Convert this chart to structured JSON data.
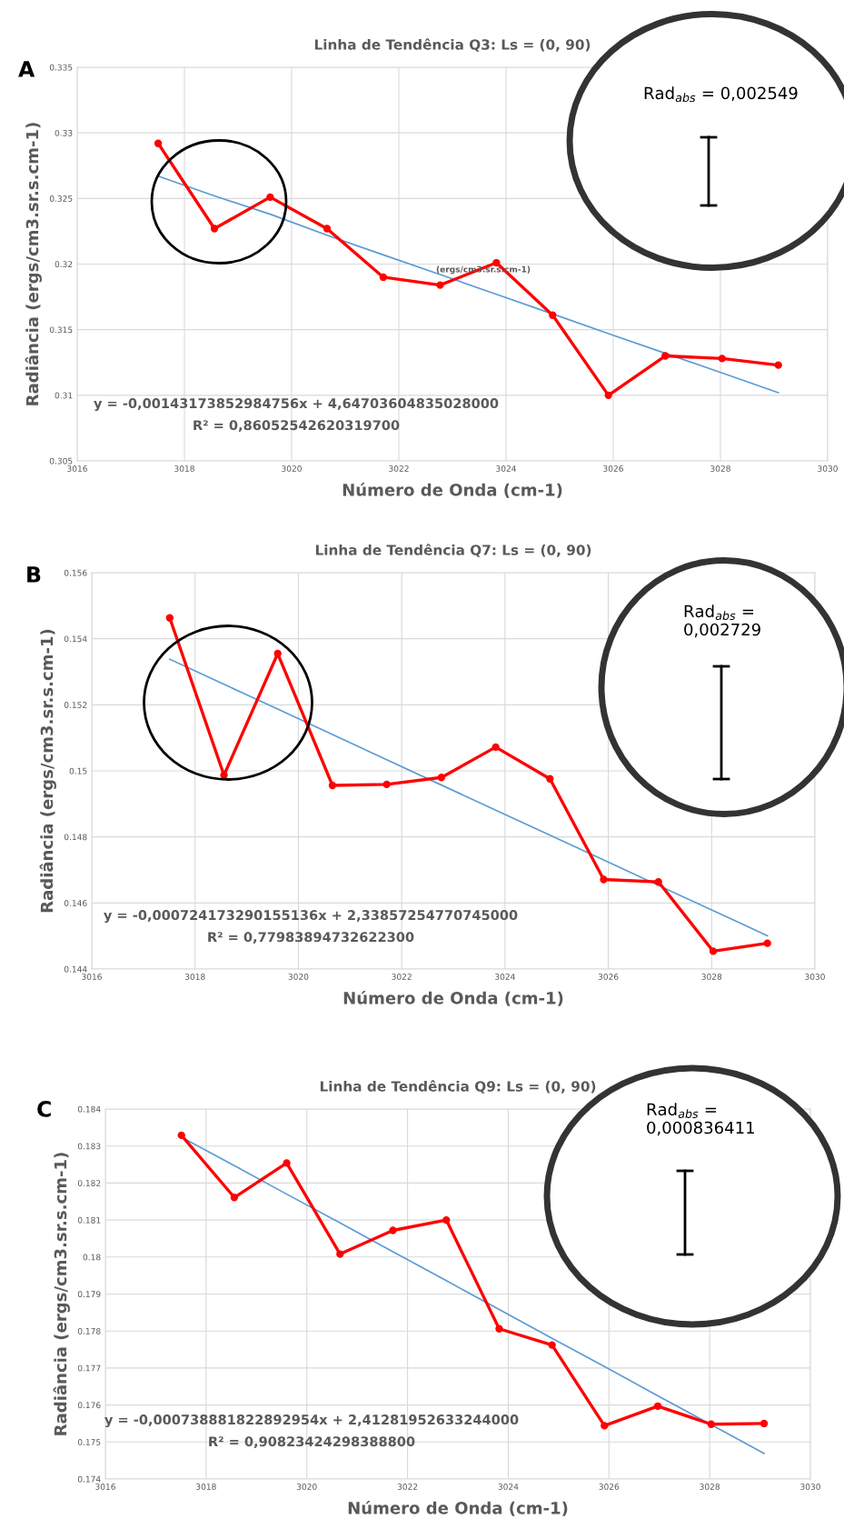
{
  "chart_data": [
    {
      "type": "line",
      "title": "Linha de Tendência Q3: Ls = (0, 90)",
      "xlabel": "Número de Onda (cm-1)",
      "ylabel": "Radiância (ergs/cm3.sr.s.cm-1)",
      "x": [
        3017.51,
        3018.56,
        3019.6,
        3020.66,
        3021.71,
        3022.77,
        3023.82,
        3024.87,
        3025.91,
        3026.97,
        3028.03,
        3029.08
      ],
      "series": [
        {
          "color": "#ff0000",
          "marker": "circle",
          "values": [
            0.3292,
            0.3227,
            0.3251,
            0.3227,
            0.319,
            0.3184,
            0.3201,
            0.3161,
            0.31,
            0.313,
            0.3128,
            0.3123
          ]
        },
        {
          "type": "line",
          "color": "#5b9bd5",
          "marker": "none",
          "values": [
            0.3267,
            0.3252,
            0.3238,
            0.3222,
            0.3207,
            0.3192,
            0.3177,
            0.3162,
            0.3147,
            0.3132,
            0.3117,
            0.3102
          ]
        }
      ],
      "xlim": [
        3016,
        3030
      ],
      "ylim": [
        0.305,
        0.335
      ],
      "xticks": [
        3016,
        3018,
        3020,
        3022,
        3024,
        3026,
        3028,
        3030
      ],
      "yticks": [
        0.305,
        0.31,
        0.315,
        0.32,
        0.325,
        0.33,
        0.335
      ],
      "grid": true,
      "annotations": [
        "A",
        "y = -0,00143173852984756x + 4,64703604835028000",
        "R² = 0,86052542620319700",
        "Rad$_{abs}$ = 0,002549",
        "(ergs/cm3.sr.s.cm-1)"
      ]
    },
    {
      "type": "line",
      "title": "Linha de Tendência Q7: Ls = (0, 90)",
      "xlabel": "Número de Onda (cm-1)",
      "ylabel": "Radiância (ergs/cm3.sr.s.cm-1)",
      "x": [
        3017.51,
        3018.56,
        3019.6,
        3020.66,
        3021.71,
        3022.77,
        3023.82,
        3024.87,
        3025.91,
        3026.97,
        3028.03,
        3029.08
      ],
      "series": [
        {
          "color": "#ff0000",
          "marker": "circle",
          "values": [
            0.15463,
            0.14987,
            0.15355,
            0.14956,
            0.14959,
            0.1498,
            0.15072,
            0.14976,
            0.14671,
            0.14664,
            0.14454,
            0.14478
          ]
        },
        {
          "type": "line",
          "color": "#5b9bd5",
          "marker": "none",
          "values": [
            0.15338,
            0.15262,
            0.15187,
            0.1511,
            0.15034,
            0.14957,
            0.14881,
            0.14805,
            0.1473,
            0.14653,
            0.14577,
            0.14501
          ]
        }
      ],
      "xlim": [
        3016,
        3030
      ],
      "ylim": [
        0.144,
        0.156
      ],
      "xticks": [
        3016,
        3018,
        3020,
        3022,
        3024,
        3026,
        3028,
        3030
      ],
      "yticks": [
        0.144,
        0.146,
        0.148,
        0.15,
        0.152,
        0.154,
        0.156
      ],
      "grid": true,
      "annotations": [
        "B",
        "y = -0,000724173290155136x + 2,33857254770745000",
        "R² = 0,77983894732622300",
        "Rad$_{abs}$ =\n0,002729"
      ]
    },
    {
      "type": "line",
      "title": "Linha de Tendência Q9: Ls = (0, 90)",
      "xlabel": "Número de Onda (cm-1)",
      "ylabel": "Radiância (ergs/cm3.sr.s.cm-1)",
      "x": [
        3017.51,
        3018.56,
        3019.6,
        3020.66,
        3021.71,
        3022.77,
        3023.82,
        3024.87,
        3025.91,
        3026.97,
        3028.03,
        3029.08
      ],
      "series": [
        {
          "color": "#ff0000",
          "marker": "circle",
          "values": [
            0.18329,
            0.18161,
            0.18254,
            0.18008,
            0.18072,
            0.181,
            0.17806,
            0.17762,
            0.17544,
            0.17597,
            0.17548,
            0.1755
          ]
        },
        {
          "type": "line",
          "color": "#5b9bd5",
          "marker": "none",
          "values": [
            0.18324,
            0.18247,
            0.1817,
            0.18092,
            0.18014,
            0.17936,
            0.17858,
            0.1778,
            0.17704,
            0.17625,
            0.17547,
            0.17469
          ]
        }
      ],
      "xlim": [
        3016,
        3030
      ],
      "ylim": [
        0.174,
        0.184
      ],
      "xticks": [
        3016,
        3018,
        3020,
        3022,
        3024,
        3026,
        3028,
        3030
      ],
      "yticks": [
        0.174,
        0.175,
        0.176,
        0.177,
        0.178,
        0.179,
        0.18,
        0.181,
        0.182,
        0.183,
        0.184
      ],
      "grid": true,
      "annotations": [
        "C",
        "y = -0,000738881822892954x + 2,41281952633244000",
        "R² = 0,90823424298388800",
        "Rad$_{abs}$ =\n0,000836411"
      ]
    }
  ]
}
